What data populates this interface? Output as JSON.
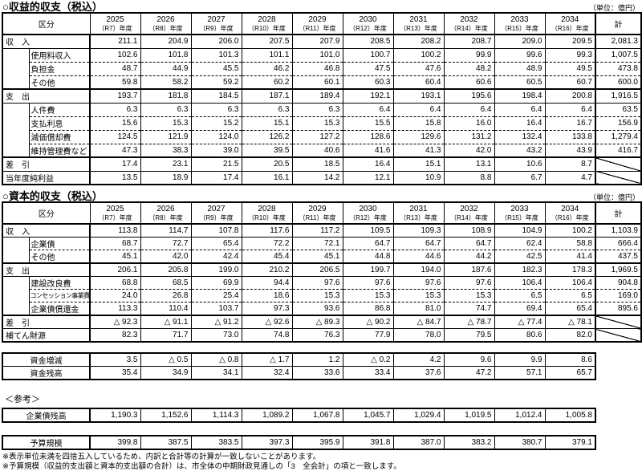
{
  "page": {
    "unit_label": "（単位：億円）",
    "corner_label": "区分",
    "total_label": "計",
    "reference_label": "＜参考＞",
    "notes": [
      "※表示単位未満を四捨五入しているため、内訳と合計等の計算が一致しないことがあります。",
      "※予算規模（収益的支出額と資本的支出額の合計）は、市全体の中期財政見通しの「3　全会計」の項と一致します。"
    ]
  },
  "years": [
    {
      "year": "2025",
      "era": "（R7）年度"
    },
    {
      "year": "2026",
      "era": "（R8）年度"
    },
    {
      "year": "2027",
      "era": "（R9）年度"
    },
    {
      "year": "2028",
      "era": "（R10）年度"
    },
    {
      "year": "2029",
      "era": "（R11）年度"
    },
    {
      "year": "2030",
      "era": "（R12）年度"
    },
    {
      "year": "2031",
      "era": "（R13）年度"
    },
    {
      "year": "2032",
      "era": "（R14）年度"
    },
    {
      "year": "2033",
      "era": "（R15）年度"
    },
    {
      "year": "2034",
      "era": "（R16）年度"
    }
  ],
  "revenue_table": {
    "title": "○収益的収支（税込）",
    "rows": [
      {
        "label": "収　入",
        "level": 0,
        "values": [
          "211.1",
          "204.9",
          "206.0",
          "207.5",
          "207.9",
          "208.5",
          "208.2",
          "208.7",
          "209.0",
          "209.5"
        ],
        "total": "2,081.3"
      },
      {
        "label": "使用料収入",
        "level": 1,
        "values": [
          "102.6",
          "101.8",
          "101.3",
          "101.1",
          "101.0",
          "100.7",
          "100.2",
          "99.9",
          "99.6",
          "99.3"
        ],
        "total": "1,007.5"
      },
      {
        "label": "負担金",
        "level": 1,
        "values": [
          "48.7",
          "44.9",
          "45.5",
          "46.2",
          "46.8",
          "47.5",
          "47.6",
          "48.2",
          "48.9",
          "49.5"
        ],
        "total": "473.8"
      },
      {
        "label": "その他",
        "level": 1,
        "values": [
          "59.8",
          "58.2",
          "59.2",
          "60.2",
          "60.1",
          "60.3",
          "60.4",
          "60.6",
          "60.5",
          "60.7"
        ],
        "total": "600.0"
      },
      {
        "label": "支　出",
        "level": 0,
        "section": true,
        "values": [
          "193.7",
          "181.8",
          "184.5",
          "187.1",
          "189.4",
          "192.1",
          "193.1",
          "195.6",
          "198.4",
          "200.8"
        ],
        "total": "1,916.5"
      },
      {
        "label": "人件費",
        "level": 1,
        "values": [
          "6.3",
          "6.3",
          "6.3",
          "6.3",
          "6.3",
          "6.4",
          "6.4",
          "6.4",
          "6.4",
          "6.4"
        ],
        "total": "63.5"
      },
      {
        "label": "支払利息",
        "level": 1,
        "values": [
          "15.6",
          "15.3",
          "15.2",
          "15.1",
          "15.3",
          "15.5",
          "15.8",
          "16.0",
          "16.4",
          "16.7"
        ],
        "total": "156.9"
      },
      {
        "label": "減価償却費",
        "level": 1,
        "values": [
          "124.5",
          "121.9",
          "124.0",
          "126.2",
          "127.2",
          "128.6",
          "129.6",
          "131.2",
          "132.4",
          "133.8"
        ],
        "total": "1,279.4"
      },
      {
        "label": "維持管理費など",
        "level": 1,
        "values": [
          "47.3",
          "38.3",
          "39.0",
          "39.5",
          "40.6",
          "41.6",
          "41.3",
          "42.0",
          "43.2",
          "43.9"
        ],
        "total": "416.7"
      },
      {
        "label": "差　引",
        "level": 0,
        "section": true,
        "values": [
          "17.4",
          "23.1",
          "21.5",
          "20.5",
          "18.5",
          "16.4",
          "15.1",
          "13.1",
          "10.6",
          "8.7"
        ],
        "diagonal": true
      },
      {
        "label": "当年度純利益",
        "level": 0,
        "values": [
          "13.5",
          "18.9",
          "17.4",
          "16.1",
          "14.2",
          "12.1",
          "10.9",
          "8.8",
          "6.7",
          "4.7"
        ],
        "diagonal": true
      }
    ]
  },
  "capital_table": {
    "title": "○資本的収支（税込）",
    "rows": [
      {
        "label": "収　入",
        "level": 0,
        "values": [
          "113.8",
          "114.7",
          "107.8",
          "117.6",
          "117.2",
          "109.5",
          "109.3",
          "108.9",
          "104.9",
          "100.2"
        ],
        "total": "1,103.9"
      },
      {
        "label": "企業債",
        "level": 1,
        "values": [
          "68.7",
          "72.7",
          "65.4",
          "72.2",
          "72.1",
          "64.7",
          "64.7",
          "64.7",
          "62.4",
          "58.8"
        ],
        "total": "666.4"
      },
      {
        "label": "その他",
        "level": 1,
        "values": [
          "45.1",
          "42.0",
          "42.4",
          "45.4",
          "45.1",
          "44.8",
          "44.6",
          "44.2",
          "42.5",
          "41.4"
        ],
        "total": "437.5"
      },
      {
        "label": "支　出",
        "level": 0,
        "section": true,
        "values": [
          "206.1",
          "205.8",
          "199.0",
          "210.2",
          "206.5",
          "199.7",
          "194.0",
          "187.6",
          "182.3",
          "178.3"
        ],
        "total": "1,969.5"
      },
      {
        "label": "建設改良費",
        "level": 1,
        "values": [
          "68.8",
          "68.5",
          "69.9",
          "94.4",
          "97.6",
          "97.6",
          "97.6",
          "97.6",
          "106.4",
          "106.4"
        ],
        "total": "904.8"
      },
      {
        "label": "コンセッション事業費",
        "level": 1,
        "small": true,
        "values": [
          "24.0",
          "26.8",
          "25.4",
          "18.6",
          "15.3",
          "15.3",
          "15.3",
          "15.3",
          "6.5",
          "6.5"
        ],
        "total": "169.0"
      },
      {
        "label": "企業債償還金",
        "level": 1,
        "values": [
          "113.3",
          "110.4",
          "103.7",
          "97.3",
          "93.6",
          "86.8",
          "81.0",
          "74.7",
          "69.4",
          "65.4"
        ],
        "total": "895.6"
      },
      {
        "label": "差　引",
        "level": 0,
        "section": true,
        "values": [
          "△ 92.3",
          "△ 91.1",
          "△ 91.2",
          "△ 92.6",
          "△ 89.3",
          "△ 90.2",
          "△ 84.7",
          "△ 78.7",
          "△ 77.4",
          "△ 78.1"
        ],
        "diagonal": true
      },
      {
        "label": "補てん財源",
        "level": 0,
        "values": [
          "82.3",
          "71.7",
          "73.0",
          "74.8",
          "76.3",
          "77.9",
          "78.0",
          "79.5",
          "80.6",
          "82.0"
        ],
        "diagonal": true
      }
    ]
  },
  "funds_table": {
    "rows": [
      {
        "label": "資金増減",
        "center": true,
        "values": [
          "3.5",
          "△ 0.5",
          "△ 0.8",
          "△ 1.7",
          "1.2",
          "△ 0.2",
          "4.2",
          "9.6",
          "9.9",
          "8.6"
        ]
      },
      {
        "label": "資金残高",
        "center": true,
        "values": [
          "35.4",
          "34.9",
          "34.1",
          "32.4",
          "33.6",
          "33.4",
          "37.6",
          "47.2",
          "57.1",
          "65.7"
        ]
      }
    ]
  },
  "bond_balance_table": {
    "rows": [
      {
        "label": "企業債残高",
        "center": true,
        "values": [
          "1,190.3",
          "1,152.6",
          "1,114.3",
          "1,089.2",
          "1,067.8",
          "1,045.7",
          "1,029.4",
          "1,019.5",
          "1,012.4",
          "1,005.8"
        ]
      }
    ]
  },
  "budget_table": {
    "rows": [
      {
        "label": "予算規模",
        "center": true,
        "values": [
          "399.8",
          "387.5",
          "383.5",
          "397.3",
          "395.9",
          "391.8",
          "387.0",
          "383.2",
          "380.7",
          "379.1"
        ]
      }
    ]
  }
}
